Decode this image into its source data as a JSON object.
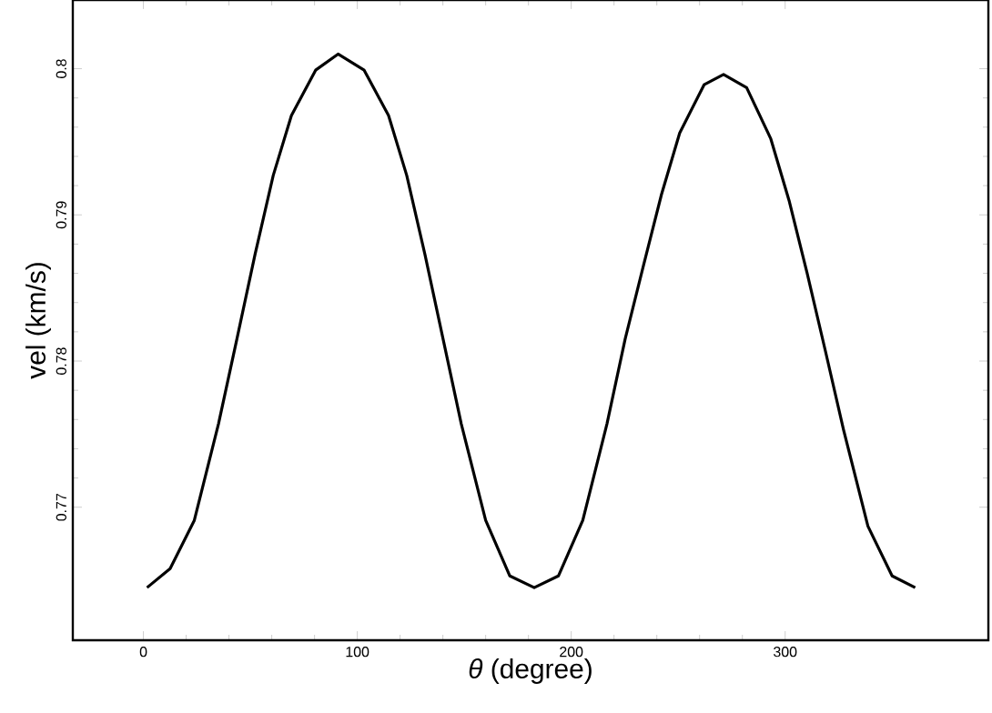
{
  "chart_data": {
    "type": "line",
    "xlabel": "*θ* (degree)",
    "ylabel": "vel (km/s)",
    "color": "#000000",
    "x": [
      1.7,
      12.5,
      23.8,
      35.1,
      43.7,
      52.2,
      60.7,
      69.2,
      80.5,
      91.0,
      103.2,
      114.6,
      123.1,
      131.6,
      140.1,
      148.6,
      160.0,
      171.3,
      182.7,
      194.0,
      205.4,
      216.7,
      225.2,
      233.7,
      242.2,
      250.7,
      262.1,
      271.2,
      282.0,
      293.3,
      301.8,
      310.3,
      318.8,
      327.3,
      338.7,
      350.0,
      360.8
    ],
    "values": [
      0.7645,
      0.7658,
      0.7691,
      0.7757,
      0.7815,
      0.7873,
      0.7927,
      0.7968,
      0.7999,
      0.801,
      0.7999,
      0.7968,
      0.7927,
      0.7873,
      0.7815,
      0.7757,
      0.7691,
      0.7653,
      0.7645,
      0.7653,
      0.7691,
      0.7757,
      0.7815,
      0.7865,
      0.7914,
      0.7956,
      0.7989,
      0.7996,
      0.7987,
      0.7952,
      0.791,
      0.786,
      0.7807,
      0.7753,
      0.7687,
      0.7653,
      0.7645
    ],
    "xlim": [
      -33,
      395
    ],
    "ylim": [
      0.7609,
      0.8047
    ],
    "xticks": [
      0,
      100,
      200,
      300
    ],
    "yticks": [
      0.77,
      0.78,
      0.79,
      0.8
    ]
  }
}
